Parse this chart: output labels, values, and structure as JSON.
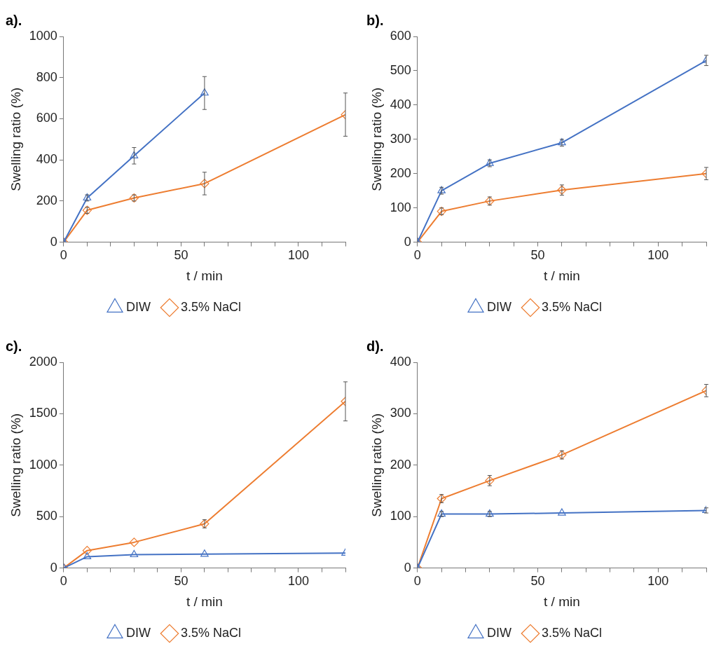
{
  "chart_data": [
    {
      "type": "line",
      "title": "a).",
      "xlabel": "t / min",
      "ylabel": "Swelling ratio (%)",
      "x": [
        0,
        10,
        30,
        60,
        120
      ],
      "xlim": [
        0,
        120
      ],
      "xticks": [
        0,
        {
          "value": 10,
          "label": null
        },
        {
          "value": 20,
          "label": null
        },
        {
          "value": 30,
          "label": null
        },
        {
          "value": 40,
          "label": null
        },
        50,
        {
          "value": 60,
          "label": null
        },
        {
          "value": 70,
          "label": null
        },
        {
          "value": 80,
          "label": null
        },
        {
          "value": 90,
          "label": null
        },
        100,
        {
          "value": 110,
          "label": null
        },
        {
          "value": 120,
          "label": null
        }
      ],
      "ylim": [
        0,
        1000
      ],
      "yticks": [
        0,
        200,
        400,
        600,
        800,
        1000
      ],
      "grid": false,
      "legend": "bottom",
      "series": [
        {
          "name": "DIW",
          "color": "#4472c4",
          "marker": "triangle",
          "x": [
            0,
            10,
            30,
            60
          ],
          "values": [
            0,
            215,
            420,
            725
          ],
          "errors": [
            null,
            15,
            40,
            80
          ]
        },
        {
          "name": "3.5% NaCl",
          "color": "#ed7d31",
          "marker": "diamond",
          "values": [
            0,
            155,
            215,
            285,
            620
          ],
          "errors": [
            null,
            15,
            15,
            55,
            105
          ]
        }
      ]
    },
    {
      "type": "line",
      "title": "b).",
      "xlabel": "t / min",
      "ylabel": "Swelling ratio (%)",
      "x": [
        0,
        10,
        30,
        60,
        120
      ],
      "xlim": [
        0,
        120
      ],
      "xticks": [
        0,
        {
          "value": 10,
          "label": null
        },
        {
          "value": 20,
          "label": null
        },
        {
          "value": 30,
          "label": null
        },
        {
          "value": 40,
          "label": null
        },
        50,
        {
          "value": 60,
          "label": null
        },
        {
          "value": 70,
          "label": null
        },
        {
          "value": 80,
          "label": null
        },
        {
          "value": 90,
          "label": null
        },
        100,
        {
          "value": 110,
          "label": null
        },
        {
          "value": 120,
          "label": null
        }
      ],
      "ylim": [
        0,
        600
      ],
      "yticks": [
        0,
        100,
        200,
        300,
        400,
        500,
        600
      ],
      "grid": false,
      "legend": "bottom",
      "series": [
        {
          "name": "DIW",
          "color": "#4472c4",
          "marker": "triangle",
          "values": [
            0,
            150,
            230,
            290,
            530
          ],
          "errors": [
            null,
            10,
            10,
            10,
            15
          ]
        },
        {
          "name": "3.5% NaCl",
          "color": "#ed7d31",
          "marker": "diamond",
          "values": [
            0,
            90,
            120,
            152,
            200
          ],
          "errors": [
            null,
            10,
            12,
            15,
            18
          ]
        }
      ]
    },
    {
      "type": "line",
      "title": "c).",
      "xlabel": "t / min",
      "ylabel": "Swelling ratio (%)",
      "x": [
        0,
        10,
        30,
        60,
        120
      ],
      "xlim": [
        0,
        120
      ],
      "xticks": [
        0,
        {
          "value": 10,
          "label": null
        },
        {
          "value": 20,
          "label": null
        },
        {
          "value": 30,
          "label": null
        },
        {
          "value": 40,
          "label": null
        },
        50,
        {
          "value": 60,
          "label": null
        },
        {
          "value": 70,
          "label": null
        },
        {
          "value": 80,
          "label": null
        },
        {
          "value": 90,
          "label": null
        },
        100,
        {
          "value": 110,
          "label": null
        },
        {
          "value": 120,
          "label": null
        }
      ],
      "ylim": [
        0,
        2000
      ],
      "yticks": [
        0,
        500,
        1000,
        1500,
        2000
      ],
      "grid": false,
      "legend": "bottom",
      "series": [
        {
          "name": "DIW",
          "color": "#4472c4",
          "marker": "triangle",
          "values": [
            0,
            110,
            130,
            135,
            145
          ]
        },
        {
          "name": "3.5% NaCl",
          "color": "#ed7d31",
          "marker": "diamond",
          "values": [
            0,
            170,
            250,
            430,
            1620
          ],
          "errors": [
            null,
            null,
            null,
            40,
            190
          ]
        }
      ]
    },
    {
      "type": "line",
      "title": "d).",
      "xlabel": "t / min",
      "ylabel": "Swelling ratio (%)",
      "x": [
        0,
        10,
        30,
        60,
        120
      ],
      "xlim": [
        0,
        120
      ],
      "xticks": [
        0,
        {
          "value": 10,
          "label": null
        },
        {
          "value": 20,
          "label": null
        },
        {
          "value": 30,
          "label": null
        },
        {
          "value": 40,
          "label": null
        },
        50,
        {
          "value": 60,
          "label": null
        },
        {
          "value": 70,
          "label": null
        },
        {
          "value": 80,
          "label": null
        },
        {
          "value": 90,
          "label": null
        },
        100,
        {
          "value": 110,
          "label": null
        },
        {
          "value": 120,
          "label": null
        }
      ],
      "ylim": [
        0,
        400
      ],
      "yticks": [
        0,
        100,
        200,
        300,
        400
      ],
      "grid": false,
      "legend": "bottom",
      "series": [
        {
          "name": "DIW",
          "color": "#4472c4",
          "marker": "triangle",
          "values": [
            0,
            105,
            105,
            107,
            112
          ],
          "errors": [
            null,
            5,
            5,
            null,
            5
          ]
        },
        {
          "name": "3.5% NaCl",
          "color": "#ed7d31",
          "marker": "diamond",
          "values": [
            0,
            135,
            170,
            220,
            345
          ],
          "errors": [
            null,
            8,
            10,
            8,
            12
          ]
        }
      ]
    }
  ]
}
